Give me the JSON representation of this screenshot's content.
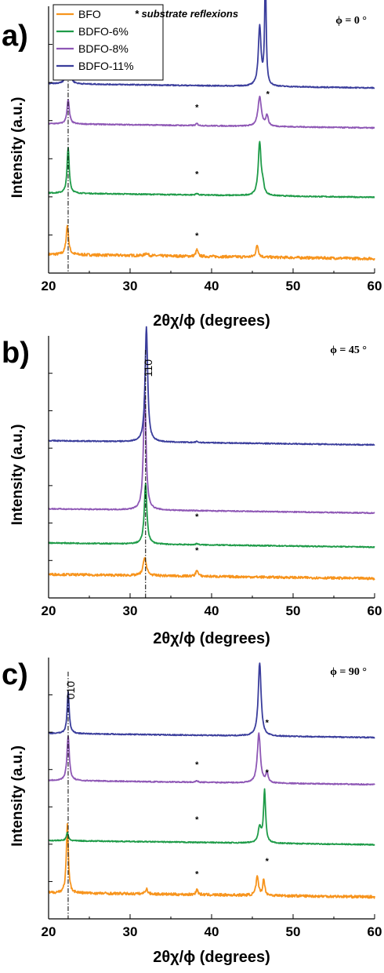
{
  "colors": {
    "BFO": "#f7941d",
    "BDFO-6%": "#1e9b48",
    "BDFO-8%": "#8e57b5",
    "BDFO-11%": "#3a3d9c",
    "axis": "#000000"
  },
  "legend": {
    "entries": [
      "BFO",
      "BDFO-6%",
      "BDFO-8%",
      "BDFO-11%"
    ],
    "note": "* substrate reflexions"
  },
  "chart_data": [
    {
      "type": "line",
      "panel": "a)",
      "phi": "ϕ = 0 °",
      "xlabel": "2θχ/ϕ (degrees)",
      "ylabel": "Intensity (a.u.)",
      "xlim": [
        20,
        60
      ],
      "xticks": [
        "20",
        "30",
        "40",
        "50",
        "60"
      ],
      "peak_label": "100",
      "peak_position": 22.4,
      "series": [
        {
          "name": "BFO",
          "baseline": 0.07,
          "noise": 0.01,
          "peaks": [
            [
              22.3,
              0.11,
              0.35
            ],
            [
              32.0,
              0.01,
              0.4
            ],
            [
              38.2,
              0.025,
              0.3
            ],
            [
              45.6,
              0.045,
              0.35
            ]
          ]
        },
        {
          "name": "BDFO-6%",
          "baseline": 0.3,
          "noise": 0.004,
          "peaks": [
            [
              22.4,
              0.17,
              0.32
            ],
            [
              38.2,
              0.006,
              0.3
            ],
            [
              45.9,
              0.2,
              0.42
            ],
            [
              46.3,
              0.03,
              0.3
            ]
          ]
        },
        {
          "name": "BDFO-8%",
          "baseline": 0.56,
          "noise": 0.004,
          "peaks": [
            [
              22.4,
              0.09,
              0.35
            ],
            [
              38.2,
              0.008,
              0.3
            ],
            [
              45.9,
              0.11,
              0.5
            ],
            [
              46.8,
              0.04,
              0.35
            ]
          ]
        },
        {
          "name": "BDFO-11%",
          "baseline": 0.71,
          "noise": 0.004,
          "peaks": [
            [
              22.4,
              0.18,
              0.32
            ],
            [
              45.9,
              0.22,
              0.4
            ],
            [
              46.6,
              0.42,
              0.22
            ]
          ]
        }
      ],
      "asterisks": [
        [
          38.2,
          0.13
        ],
        [
          38.2,
          0.36
        ],
        [
          38.2,
          0.61
        ],
        [
          46.9,
          0.66
        ],
        [
          46.9,
          1.18
        ]
      ]
    },
    {
      "type": "line",
      "panel": "b)",
      "phi": "ϕ = 45 °",
      "xlabel": "2θχ/ϕ (degrees)",
      "ylabel": "Intensity (a.u.)",
      "xlim": [
        20,
        60
      ],
      "xticks": [
        "20",
        "30",
        "40",
        "50",
        "60"
      ],
      "peak_label": "110",
      "peak_position": 31.9,
      "series": [
        {
          "name": "BFO",
          "baseline": 0.09,
          "noise": 0.009,
          "peaks": [
            [
              31.8,
              0.07,
              0.45
            ],
            [
              38.2,
              0.025,
              0.3
            ]
          ]
        },
        {
          "name": "BDFO-6%",
          "baseline": 0.21,
          "noise": 0.004,
          "peaks": [
            [
              31.9,
              0.23,
              0.38
            ],
            [
              38.2,
              0.005,
              0.3
            ]
          ]
        },
        {
          "name": "BDFO-8%",
          "baseline": 0.34,
          "noise": 0.004,
          "peaks": [
            [
              31.8,
              0.45,
              0.38
            ]
          ]
        },
        {
          "name": "BDFO-11%",
          "baseline": 0.6,
          "noise": 0.004,
          "peaks": [
            [
              32.0,
              0.44,
              0.38
            ],
            [
              38.2,
              0.004,
              0.3
            ]
          ]
        }
      ],
      "asterisks": [
        [
          38.2,
          0.17
        ],
        [
          38.2,
          0.3
        ]
      ]
    },
    {
      "type": "line",
      "panel": "c)",
      "phi": "ϕ = 90 °",
      "xlabel": "2θχ/ϕ (degrees)",
      "ylabel": "Intensity (a.u.)",
      "xlim": [
        20,
        60
      ],
      "xticks": [
        "20",
        "30",
        "40",
        "50",
        "60"
      ],
      "peak_label": "010",
      "peak_position": 22.4,
      "series": [
        {
          "name": "BFO",
          "baseline": 0.1,
          "noise": 0.01,
          "peaks": [
            [
              22.3,
              0.26,
              0.3
            ],
            [
              32.0,
              0.02,
              0.35
            ],
            [
              38.2,
              0.02,
              0.3
            ],
            [
              45.6,
              0.07,
              0.35
            ],
            [
              46.4,
              0.06,
              0.3
            ]
          ]
        },
        {
          "name": "BDFO-6%",
          "baseline": 0.3,
          "noise": 0.004,
          "peaks": [
            [
              22.3,
              0.03,
              0.3
            ],
            [
              45.9,
              0.06,
              0.45
            ],
            [
              46.5,
              0.2,
              0.3
            ]
          ]
        },
        {
          "name": "BDFO-8%",
          "baseline": 0.53,
          "noise": 0.004,
          "peaks": [
            [
              22.4,
              0.17,
              0.35
            ],
            [
              38.2,
              0.006,
              0.3
            ],
            [
              45.8,
              0.19,
              0.45
            ],
            [
              46.8,
              0.04,
              0.3
            ]
          ]
        },
        {
          "name": "BDFO-11%",
          "baseline": 0.71,
          "noise": 0.004,
          "peaks": [
            [
              22.4,
              0.16,
              0.3
            ],
            [
              45.9,
              0.28,
              0.42
            ]
          ]
        }
      ],
      "asterisks": [
        [
          38.2,
          0.16
        ],
        [
          38.2,
          0.37
        ],
        [
          38.2,
          0.58
        ],
        [
          46.8,
          0.55
        ],
        [
          46.8,
          0.74
        ],
        [
          46.8,
          0.21
        ]
      ]
    }
  ]
}
